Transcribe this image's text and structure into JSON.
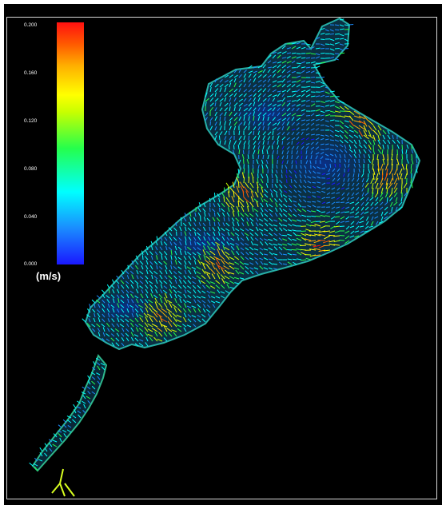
{
  "colorbar": {
    "unit": "(m/s)",
    "ticks": [
      "0.200",
      "0.160",
      "0.120",
      "0.080",
      "0.040",
      "0.000"
    ],
    "min": 0.0,
    "max": 0.2,
    "colors": [
      "#1a18ff",
      "#1a8cff",
      "#00ffff",
      "#25ff4c",
      "#c8ff00",
      "#ffff00",
      "#ffb000",
      "#ff5a00",
      "#ff1010"
    ]
  },
  "map": {
    "background": "#000000",
    "border_color": "#d8d8d8",
    "quantity": "current velocity vectors"
  }
}
